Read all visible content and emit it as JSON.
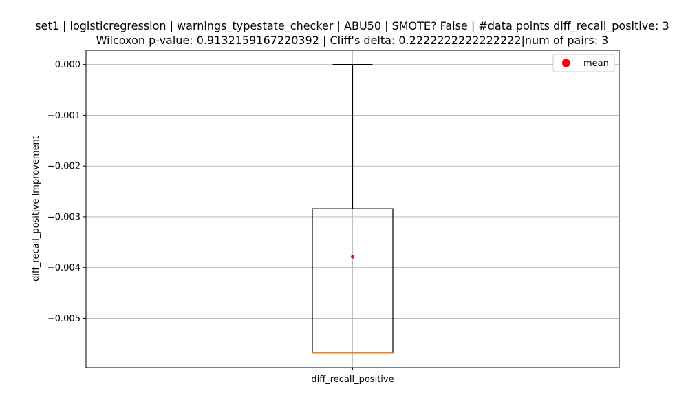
{
  "chart_data": {
    "type": "box",
    "title_line1": "set1 | logisticregression | warnings_typestate_checker | ABU50 | SMOTE? False | #data points diff_recall_positive: 3",
    "title_line2": "Wilcoxon p-value: 0.9132159167220392 | Cliff's delta: 0.2222222222222222|num of pairs: 3",
    "xlabel": "",
    "ylabel": "diff_recall_positive Improvement",
    "categories": [
      "diff_recall_positive"
    ],
    "yticks": [
      0.0,
      -0.001,
      -0.002,
      -0.003,
      -0.004,
      -0.005
    ],
    "ytick_labels": [
      "0.000",
      "−0.001",
      "−0.002",
      "−0.003",
      "−0.004",
      "−0.005"
    ],
    "ylim": [
      -0.00597,
      0.00028
    ],
    "grid": true,
    "legend": {
      "position": "top-right",
      "entries": [
        {
          "label": "mean",
          "color": "#ff0000",
          "marker": "circle"
        }
      ]
    },
    "box": {
      "whisker_low": -0.00568,
      "q1": -0.00568,
      "median": -0.00568,
      "q3": -0.00284,
      "whisker_high": 0.0,
      "mean": -0.00379
    },
    "colors": {
      "box": "#000000",
      "median": "#ff7f0e",
      "mean": "#ff0000",
      "grid": "#b0b0b0"
    }
  }
}
